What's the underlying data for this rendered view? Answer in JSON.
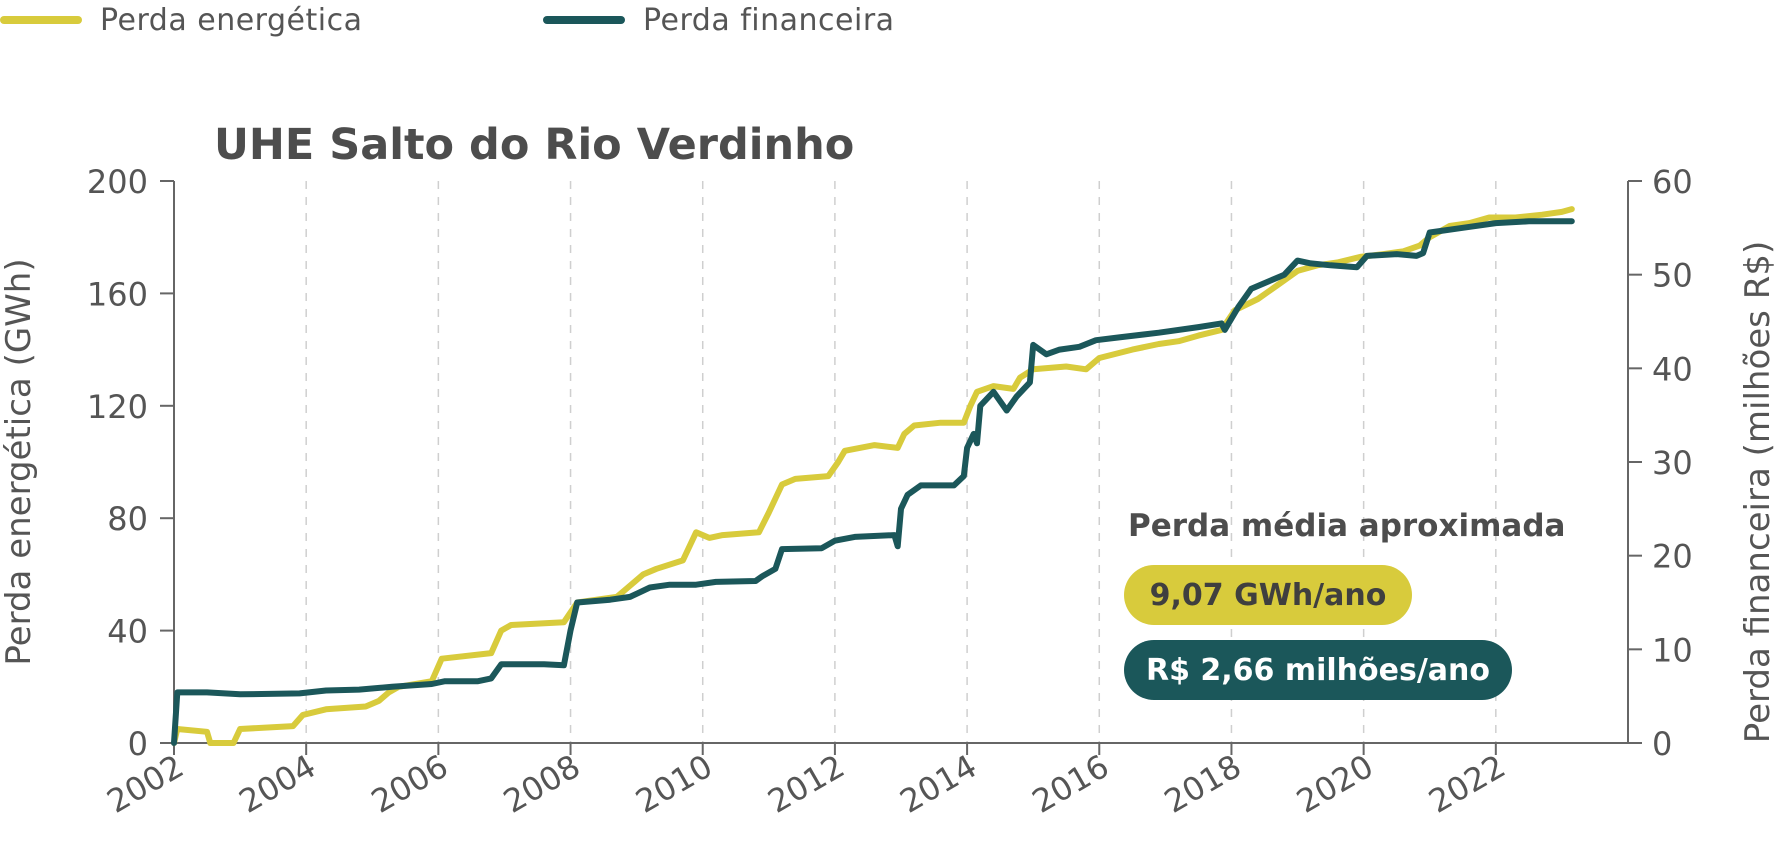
{
  "legend": {
    "items": [
      {
        "label": "Perda energética",
        "color": "#d8cb3c"
      },
      {
        "label": "Perda financeira",
        "color": "#1b575a"
      }
    ]
  },
  "summary": {
    "heading": "Perda média aproximada",
    "energy_badge": "9,07 GWh/ano",
    "finance_badge": "R$ 2,66 milhões/ano"
  },
  "chart_data": {
    "type": "line",
    "title": "UHE Salto do Rio Verdinho",
    "xlabel": "",
    "x_range": [
      2002,
      2024
    ],
    "x_ticks": [
      "2002",
      "2004",
      "2006",
      "2008",
      "2010",
      "2012",
      "2014",
      "2016",
      "2018",
      "2020",
      "2022"
    ],
    "x_grid": "dashed vertical",
    "y_left": {
      "label": "Perda energética (GWh)",
      "lim": [
        0,
        200
      ],
      "ticks": [
        "0",
        "40",
        "80",
        "120",
        "160",
        "200"
      ]
    },
    "y_right": {
      "label": "Perda financeira (milhões R$)",
      "lim": [
        0,
        60
      ],
      "ticks": [
        "0",
        "10",
        "20",
        "30",
        "40",
        "50",
        "60"
      ]
    },
    "series": [
      {
        "name": "Perda energética",
        "axis": "left",
        "color": "#d8cb3c",
        "points": [
          [
            2002.0,
            0
          ],
          [
            2002.05,
            5
          ],
          [
            2002.5,
            4
          ],
          [
            2002.55,
            0
          ],
          [
            2002.9,
            0
          ],
          [
            2003.0,
            5
          ],
          [
            2003.8,
            6
          ],
          [
            2003.95,
            10
          ],
          [
            2004.3,
            12
          ],
          [
            2004.9,
            13
          ],
          [
            2005.1,
            15
          ],
          [
            2005.25,
            18
          ],
          [
            2005.4,
            20
          ],
          [
            2005.9,
            22
          ],
          [
            2006.05,
            30
          ],
          [
            2006.8,
            32
          ],
          [
            2006.95,
            40
          ],
          [
            2007.1,
            42
          ],
          [
            2007.9,
            43
          ],
          [
            2008.1,
            50
          ],
          [
            2008.7,
            52
          ],
          [
            2008.85,
            55
          ],
          [
            2009.1,
            60
          ],
          [
            2009.3,
            62
          ],
          [
            2009.7,
            65
          ],
          [
            2009.9,
            75
          ],
          [
            2010.1,
            73
          ],
          [
            2010.3,
            74
          ],
          [
            2010.85,
            75
          ],
          [
            2011.0,
            82
          ],
          [
            2011.2,
            92
          ],
          [
            2011.4,
            94
          ],
          [
            2011.9,
            95
          ],
          [
            2012.05,
            100
          ],
          [
            2012.15,
            104
          ],
          [
            2012.6,
            106
          ],
          [
            2012.95,
            105
          ],
          [
            2013.05,
            110
          ],
          [
            2013.2,
            113
          ],
          [
            2013.6,
            114
          ],
          [
            2013.95,
            114
          ],
          [
            2014.05,
            120
          ],
          [
            2014.15,
            125
          ],
          [
            2014.4,
            127
          ],
          [
            2014.7,
            126
          ],
          [
            2014.8,
            130
          ],
          [
            2015.0,
            133
          ],
          [
            2015.5,
            134
          ],
          [
            2015.8,
            133
          ],
          [
            2016.0,
            137
          ],
          [
            2016.5,
            140
          ],
          [
            2016.9,
            142
          ],
          [
            2017.2,
            143
          ],
          [
            2017.5,
            145
          ],
          [
            2017.85,
            147
          ],
          [
            2018.05,
            154
          ],
          [
            2018.4,
            158
          ],
          [
            2018.7,
            163
          ],
          [
            2019.0,
            168
          ],
          [
            2019.3,
            170
          ],
          [
            2019.6,
            171
          ],
          [
            2019.95,
            173
          ],
          [
            2020.3,
            174
          ],
          [
            2020.6,
            175
          ],
          [
            2020.85,
            177
          ],
          [
            2021.0,
            180
          ],
          [
            2021.3,
            184
          ],
          [
            2021.6,
            185
          ],
          [
            2021.9,
            187
          ],
          [
            2022.3,
            187
          ],
          [
            2022.7,
            188
          ],
          [
            2023.0,
            189
          ],
          [
            2023.15,
            190
          ]
        ]
      },
      {
        "name": "Perda financeira",
        "axis": "right",
        "color": "#1b575a",
        "points": [
          [
            2002.0,
            0
          ],
          [
            2002.05,
            5.4
          ],
          [
            2002.5,
            5.4
          ],
          [
            2003.0,
            5.2
          ],
          [
            2003.9,
            5.3
          ],
          [
            2004.3,
            5.6
          ],
          [
            2004.8,
            5.7
          ],
          [
            2005.3,
            6.0
          ],
          [
            2005.9,
            6.3
          ],
          [
            2006.1,
            6.6
          ],
          [
            2006.6,
            6.6
          ],
          [
            2006.8,
            6.9
          ],
          [
            2006.95,
            8.4
          ],
          [
            2007.6,
            8.4
          ],
          [
            2007.9,
            8.3
          ],
          [
            2008.0,
            12.0
          ],
          [
            2008.1,
            15.0
          ],
          [
            2008.6,
            15.3
          ],
          [
            2008.9,
            15.6
          ],
          [
            2009.2,
            16.6
          ],
          [
            2009.5,
            16.9
          ],
          [
            2009.9,
            16.9
          ],
          [
            2010.2,
            17.2
          ],
          [
            2010.8,
            17.3
          ],
          [
            2010.9,
            17.8
          ],
          [
            2011.1,
            18.6
          ],
          [
            2011.2,
            20.7
          ],
          [
            2011.8,
            20.8
          ],
          [
            2012.0,
            21.6
          ],
          [
            2012.3,
            22.0
          ],
          [
            2012.9,
            22.2
          ],
          [
            2012.95,
            21.0
          ],
          [
            2013.0,
            25.0
          ],
          [
            2013.1,
            26.5
          ],
          [
            2013.3,
            27.5
          ],
          [
            2013.8,
            27.5
          ],
          [
            2013.95,
            28.5
          ],
          [
            2014.0,
            31.5
          ],
          [
            2014.1,
            33.0
          ],
          [
            2014.15,
            32.0
          ],
          [
            2014.2,
            36.0
          ],
          [
            2014.4,
            37.5
          ],
          [
            2014.6,
            35.5
          ],
          [
            2014.75,
            37.0
          ],
          [
            2014.95,
            38.5
          ],
          [
            2015.0,
            42.5
          ],
          [
            2015.2,
            41.5
          ],
          [
            2015.4,
            42.0
          ],
          [
            2015.7,
            42.3
          ],
          [
            2015.95,
            43.0
          ],
          [
            2016.3,
            43.3
          ],
          [
            2016.9,
            43.8
          ],
          [
            2017.5,
            44.4
          ],
          [
            2017.85,
            44.8
          ],
          [
            2017.9,
            44.1
          ],
          [
            2018.1,
            46.5
          ],
          [
            2018.3,
            48.5
          ],
          [
            2018.8,
            50.0
          ],
          [
            2019.0,
            51.5
          ],
          [
            2019.2,
            51.2
          ],
          [
            2019.5,
            51.0
          ],
          [
            2019.9,
            50.8
          ],
          [
            2020.05,
            52.0
          ],
          [
            2020.5,
            52.2
          ],
          [
            2020.8,
            52.0
          ],
          [
            2020.9,
            52.3
          ],
          [
            2021.0,
            54.5
          ],
          [
            2021.5,
            55.0
          ],
          [
            2022.0,
            55.5
          ],
          [
            2022.5,
            55.7
          ],
          [
            2023.15,
            55.7
          ]
        ]
      }
    ]
  }
}
